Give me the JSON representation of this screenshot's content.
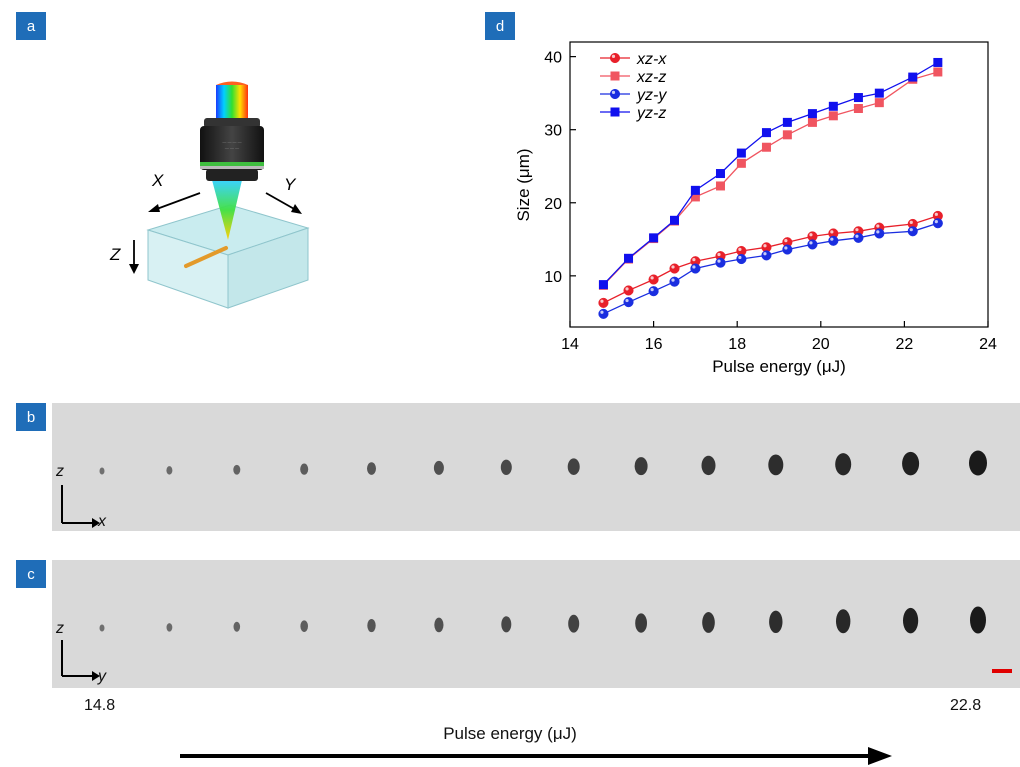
{
  "panels": {
    "a": "a",
    "b": "b",
    "c": "c",
    "d": "d"
  },
  "schematic": {
    "axis_x": "X",
    "axis_y": "Y",
    "axis_z": "Z"
  },
  "strip_b": {
    "axis_vertical": "z",
    "axis_horizontal": "x",
    "spot_count": 14
  },
  "strip_c": {
    "axis_vertical": "z",
    "axis_horizontal": "y",
    "spot_count": 14
  },
  "bottom": {
    "start_label": "14.8",
    "end_label": "22.8",
    "xlabel": "Pulse energy (μJ)"
  },
  "chart_data": {
    "type": "line",
    "xlabel": "Pulse energy (μJ)",
    "ylabel": "Size (μm)",
    "xlim": [
      14,
      24
    ],
    "ylim": [
      3,
      42
    ],
    "xticks": [
      "14",
      "16",
      "18",
      "20",
      "22",
      "24"
    ],
    "yticks": [
      "10",
      "20",
      "30",
      "40"
    ],
    "legend_position": "top-left",
    "x": [
      14.8,
      15.4,
      16.0,
      16.5,
      17.0,
      17.6,
      18.1,
      18.7,
      19.2,
      19.8,
      20.3,
      20.9,
      21.4,
      22.2,
      22.8
    ],
    "series": [
      {
        "name": "xz-x",
        "marker": "circle",
        "color": "#e8202a",
        "values": [
          6.3,
          8.0,
          9.5,
          11.0,
          12.0,
          12.7,
          13.4,
          13.9,
          14.6,
          15.4,
          15.8,
          16.1,
          16.6,
          17.1,
          18.2
        ]
      },
      {
        "name": "xz-z",
        "marker": "square",
        "color": "#f05560",
        "values": [
          8.7,
          12.3,
          15.1,
          17.5,
          20.8,
          22.3,
          25.4,
          27.6,
          29.3,
          31.0,
          31.9,
          32.9,
          33.7,
          36.9,
          37.9
        ]
      },
      {
        "name": "yz-y",
        "marker": "circle",
        "color": "#1a2ee0",
        "values": [
          4.8,
          6.4,
          7.9,
          9.2,
          11.0,
          11.8,
          12.3,
          12.8,
          13.6,
          14.3,
          14.8,
          15.2,
          15.8,
          16.1,
          17.2
        ]
      },
      {
        "name": "yz-z",
        "marker": "square",
        "color": "#1010ee",
        "values": [
          8.8,
          12.4,
          15.2,
          17.6,
          21.7,
          24.0,
          26.8,
          29.6,
          31.0,
          32.2,
          33.2,
          34.4,
          35.0,
          37.2,
          39.2
        ]
      }
    ]
  }
}
